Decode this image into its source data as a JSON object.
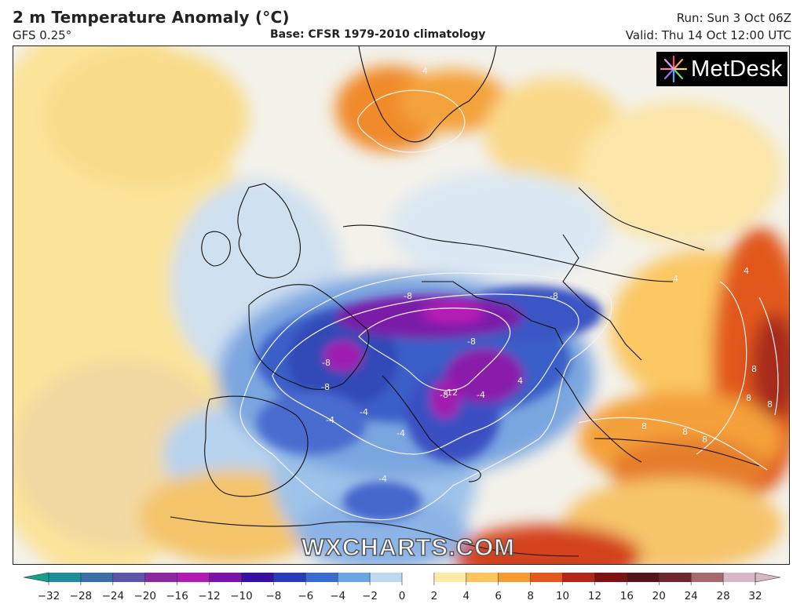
{
  "header": {
    "title": "2 m Temperature Anomaly (°C)",
    "model": "GFS 0.25°",
    "base": "Base: CFSR 1979-2010 climatology",
    "run": "Run: Sun 3 Oct 06Z",
    "valid": "Valid: Thu 14 Oct 12:00 UTC"
  },
  "brand": {
    "logo_text": "MetDesk",
    "watermark": "WXCHARTS.COM"
  },
  "legend": {
    "ticks": [
      "−32",
      "−28",
      "−24",
      "−20",
      "−16",
      "−12",
      "−10",
      "−8",
      "−6",
      "−4",
      "−2",
      "0",
      "2",
      "4",
      "6",
      "8",
      "10",
      "12",
      "16",
      "20",
      "24",
      "28",
      "32"
    ],
    "colors": [
      "#14a08a",
      "#1e8f9a",
      "#3a6fa8",
      "#5c56a8",
      "#8a2a9e",
      "#b01cb2",
      "#7a14a8",
      "#3a10a0",
      "#2a3ab8",
      "#3a6ccf",
      "#6aa6e0",
      "#bcd9ef",
      "#ffffff",
      "#ffe9a8",
      "#fcc45a",
      "#f69a32",
      "#e4571e",
      "#b5261a",
      "#7d1414",
      "#58151a",
      "#6e2a2a",
      "#a66a6a",
      "#d8b8c8"
    ]
  },
  "map": {
    "contour_labels": [
      "-8",
      "-8",
      "-8",
      "-8",
      "-8",
      "-8",
      "-4",
      "-4",
      "-4",
      "-4",
      "-4",
      "-12",
      "4",
      "4",
      "4",
      "4",
      "8",
      "8",
      "8",
      "8",
      "8",
      "8"
    ]
  }
}
